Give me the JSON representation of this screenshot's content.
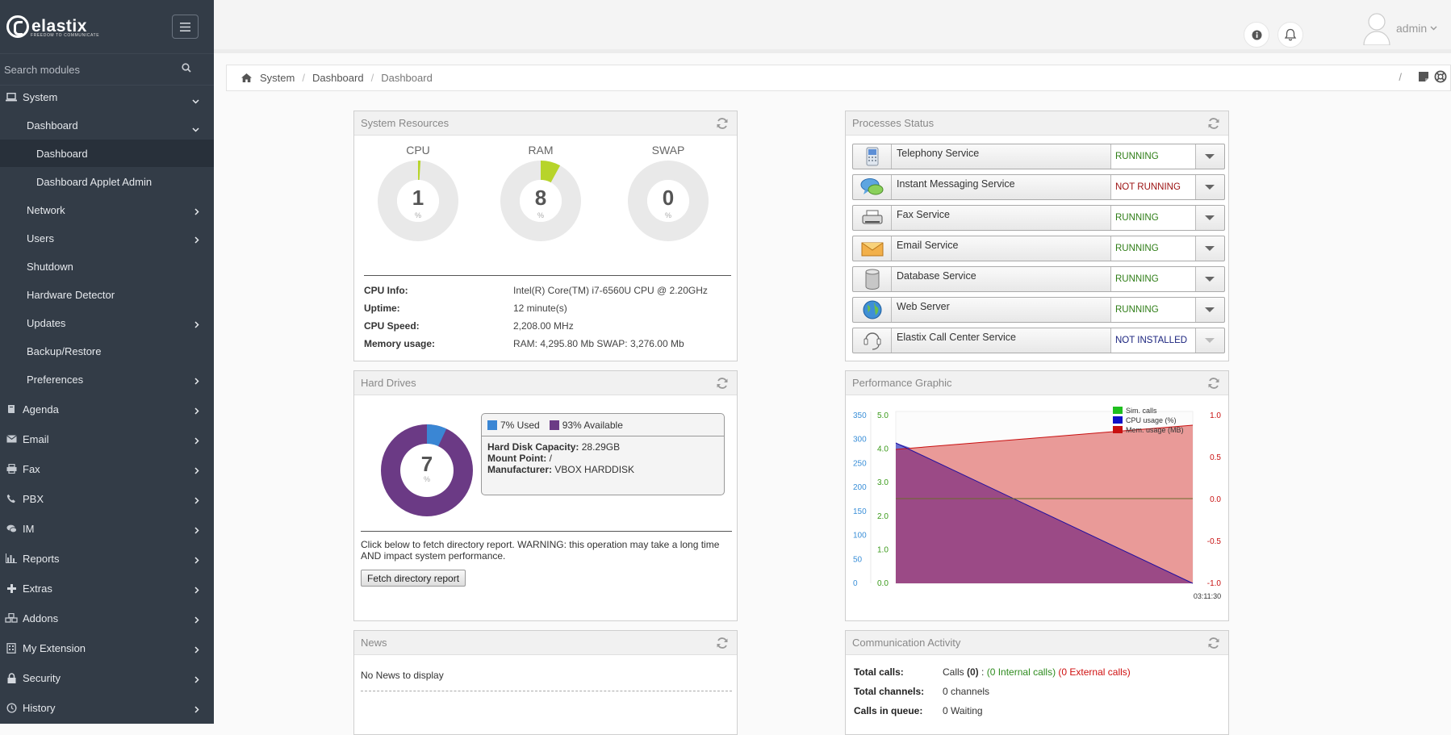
{
  "app": {
    "logo_text": "elastix",
    "logo_tagline": "FREEDOM TO COMMUNICATE",
    "brand_color": "#333c47"
  },
  "sidebar": {
    "search_placeholder": "Search modules",
    "items": [
      {
        "label": "System",
        "icon": "laptop-icon",
        "level": 0,
        "expanded": true
      },
      {
        "label": "Dashboard",
        "level": 1,
        "expanded": true
      },
      {
        "label": "Dashboard",
        "level": 2,
        "active": true
      },
      {
        "label": "Dashboard Applet Admin",
        "level": 2
      },
      {
        "label": "Network",
        "level": 1
      },
      {
        "label": "Users",
        "level": 1
      },
      {
        "label": "Shutdown",
        "level": 1
      },
      {
        "label": "Hardware Detector",
        "level": 1
      },
      {
        "label": "Updates",
        "level": 1
      },
      {
        "label": "Backup/Restore",
        "level": 1
      },
      {
        "label": "Preferences",
        "level": 1
      },
      {
        "label": "Agenda",
        "icon": "book-icon",
        "level": 0
      },
      {
        "label": "Email",
        "icon": "envelope-icon",
        "level": 0
      },
      {
        "label": "Fax",
        "icon": "printer-icon",
        "level": 0
      },
      {
        "label": "PBX",
        "icon": "phone-icon",
        "level": 0
      },
      {
        "label": "IM",
        "icon": "chat-icon",
        "level": 0
      },
      {
        "label": "Reports",
        "icon": "bar-chart-icon",
        "level": 0
      },
      {
        "label": "Extras",
        "icon": "plus-icon",
        "level": 0
      },
      {
        "label": "Addons",
        "icon": "cubes-icon",
        "level": 0
      },
      {
        "label": "My Extension",
        "icon": "building-icon",
        "level": 0
      },
      {
        "label": "Security",
        "icon": "lock-icon",
        "level": 0
      },
      {
        "label": "History",
        "icon": "history-icon",
        "level": 0
      }
    ]
  },
  "topbar": {
    "user": "admin"
  },
  "breadcrumb": {
    "items": [
      "System",
      "Dashboard",
      "Dashboard"
    ],
    "right_sep": "/"
  },
  "system_resources": {
    "title": "System Resources",
    "gauges": [
      {
        "label": "CPU",
        "value": "1",
        "unit": "%",
        "fraction": 0.01
      },
      {
        "label": "RAM",
        "value": "8",
        "unit": "%",
        "fraction": 0.08
      },
      {
        "label": "SWAP",
        "value": "0",
        "unit": "%",
        "fraction": 0.0
      }
    ],
    "gauge_color": "#b7d42a",
    "info": [
      {
        "k": "CPU Info:",
        "v": "Intel(R) Core(TM) i7-6560U CPU @ 2.20GHz"
      },
      {
        "k": "Uptime:",
        "v": "12 minute(s)"
      },
      {
        "k": "CPU Speed:",
        "v": "2,208.00 MHz"
      },
      {
        "k": "Memory usage:",
        "v": "RAM: 4,295.80 Mb SWAP: 3,276.00 Mb"
      }
    ]
  },
  "processes": {
    "title": "Processes Status",
    "items": [
      {
        "name": "Telephony Service",
        "status": "RUNNING",
        "color": "#2e7d16",
        "icon": "phone-device-icon"
      },
      {
        "name": "Instant Messaging Service",
        "status": "NOT RUNNING",
        "color": "#9b1010",
        "icon": "chat-bubbles-icon"
      },
      {
        "name": "Fax Service",
        "status": "RUNNING",
        "color": "#2e7d16",
        "icon": "fax-icon"
      },
      {
        "name": "Email Service",
        "status": "RUNNING",
        "color": "#2e7d16",
        "icon": "envelope-icon"
      },
      {
        "name": "Database Service",
        "status": "RUNNING",
        "color": "#2e7d16",
        "icon": "database-icon"
      },
      {
        "name": "Web Server",
        "status": "RUNNING",
        "color": "#2e7d16",
        "icon": "globe-icon"
      },
      {
        "name": "Elastix Call Center Service",
        "status": "NOT INSTALLED",
        "color": "#1a237e",
        "icon": "headset-icon"
      }
    ]
  },
  "hard_drives": {
    "title": "Hard Drives",
    "used_pct": 7,
    "used_label": "7% Used",
    "available_label": "93% Available",
    "center_value": "7",
    "center_unit": "%",
    "used_color": "#3a86d4",
    "available_color": "#6b3a85",
    "details": [
      {
        "k": "Hard Disk Capacity:",
        "v": "28.29GB"
      },
      {
        "k": "Mount Point:",
        "v": "/"
      },
      {
        "k": "Manufacturer:",
        "v": "VBOX HARDDISK"
      }
    ],
    "note": "Click below to fetch directory report. WARNING: this operation may take a long time AND impact system performance.",
    "button": "Fetch directory report"
  },
  "performance": {
    "title": "Performance Graphic",
    "legend": [
      {
        "name": "Sim. calls",
        "color": "#1fbf1f"
      },
      {
        "name": "CPU usage (%)",
        "color": "#1010c8"
      },
      {
        "name": "Mem. usage (MB)",
        "color": "#c81010"
      }
    ],
    "y1_ticks": [
      "350",
      "300",
      "250",
      "200",
      "150",
      "100",
      "50",
      "0"
    ],
    "y2_ticks": [
      "5.0",
      "4.0",
      "3.0",
      "2.0",
      "1.0",
      "0.0"
    ],
    "y3_ticks": [
      "1.0",
      "0.5",
      "0.0",
      "-0.5",
      "-1.0"
    ],
    "x_label": "03:11:30"
  },
  "news": {
    "title": "News",
    "empty": "No News to display"
  },
  "comm": {
    "title": "Communication Activity",
    "rows": [
      {
        "k": "Total calls:",
        "v1": "Calls ",
        "v1b": "(0)",
        "v1c": " : ",
        "v2": "(0 Internal calls)",
        "v3": " (0 External calls)"
      },
      {
        "k": "Total channels:",
        "v1": "0 channels"
      },
      {
        "k": "Calls in queue:",
        "v1": "0 Waiting"
      }
    ]
  }
}
